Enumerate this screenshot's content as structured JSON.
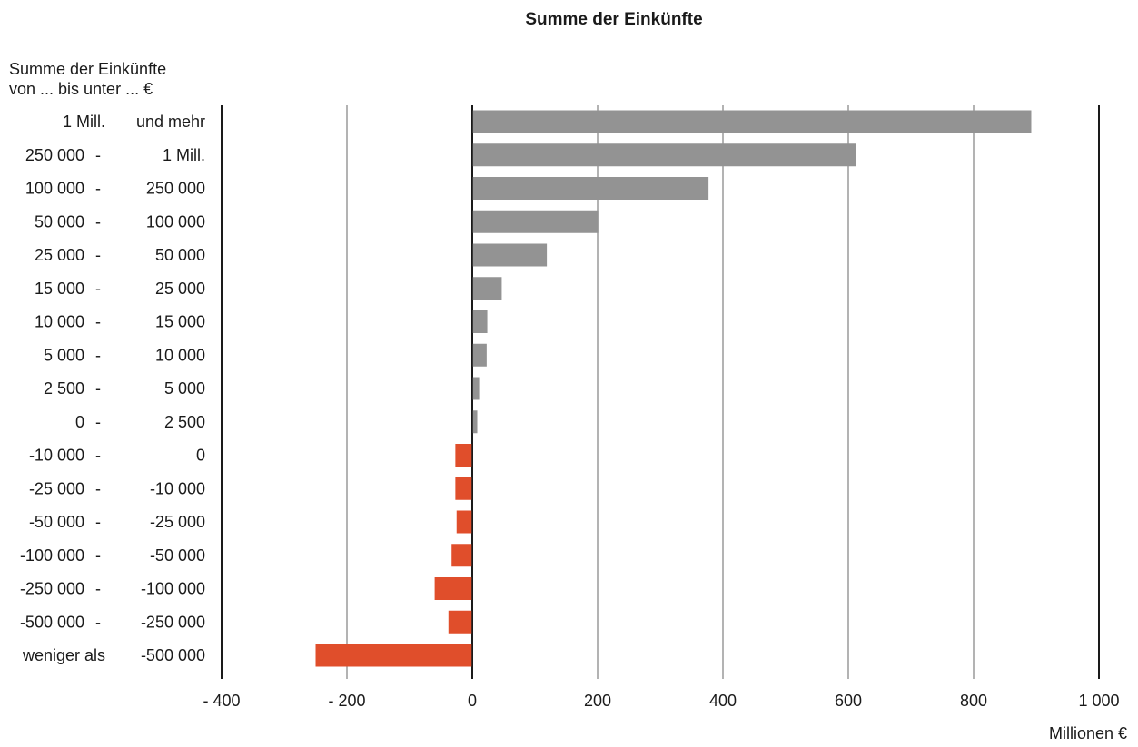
{
  "chart_data": {
    "type": "bar",
    "orientation": "horizontal",
    "title": "Summe der Einkünfte",
    "category_header": [
      "Summe der Einkünfte",
      "von ... bis unter ... €"
    ],
    "xlabel": "Millionen €",
    "xlim": [
      -400,
      1000
    ],
    "xticks": [
      -400,
      -200,
      0,
      200,
      400,
      600,
      800,
      1000
    ],
    "xtick_labels": [
      "- 400",
      "- 200",
      "0",
      "200",
      "400",
      "600",
      "800",
      "1 000"
    ],
    "grid": true,
    "categories": [
      {
        "from": "1 Mill.",
        "sep": "",
        "to": "und mehr"
      },
      {
        "from": "250 000",
        "sep": "-",
        "to": "1 Mill."
      },
      {
        "from": "100 000",
        "sep": "-",
        "to": "250 000"
      },
      {
        "from": "50 000",
        "sep": "-",
        "to": "100 000"
      },
      {
        "from": "25 000",
        "sep": "-",
        "to": "50 000"
      },
      {
        "from": "15 000",
        "sep": "-",
        "to": "25 000"
      },
      {
        "from": "10 000",
        "sep": "-",
        "to": "15 000"
      },
      {
        "from": "5 000",
        "sep": "-",
        "to": "10 000"
      },
      {
        "from": "2 500",
        "sep": "-",
        "to": "5 000"
      },
      {
        "from": "0",
        "sep": "-",
        "to": "2 500"
      },
      {
        "from": "-10 000",
        "sep": "-",
        "to": "0"
      },
      {
        "from": "-25 000",
        "sep": "-",
        "to": "-10 000"
      },
      {
        "from": "-50 000",
        "sep": "-",
        "to": "-25 000"
      },
      {
        "from": "-100 000",
        "sep": "-",
        "to": "-50 000"
      },
      {
        "from": "-250 000",
        "sep": "-",
        "to": "-100 000"
      },
      {
        "from": "-500 000",
        "sep": "-",
        "to": "-250 000"
      },
      {
        "from": "weniger als",
        "sep": "",
        "to": "-500 000"
      }
    ],
    "values": [
      892,
      613,
      377,
      201,
      119,
      47,
      24,
      23,
      11,
      8,
      -27,
      -27,
      -25,
      -33,
      -60,
      -38,
      -250
    ],
    "colors": {
      "positive": "#939393",
      "negative": "#e04e2b",
      "grid": "#9a9a9a",
      "axis": "#1a1a1a"
    }
  }
}
